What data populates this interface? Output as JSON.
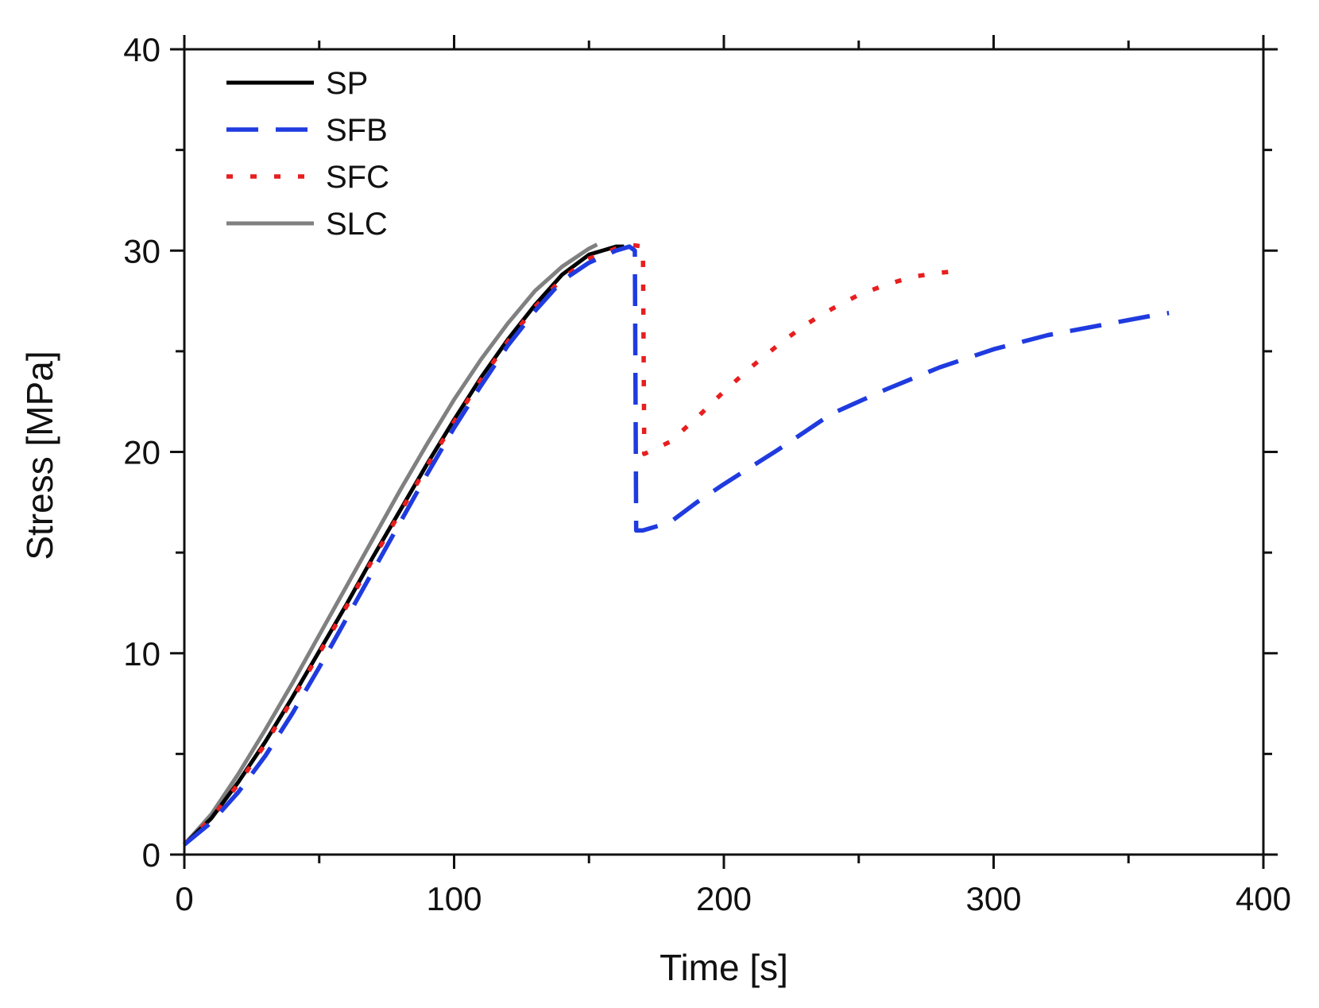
{
  "chart_data": {
    "type": "line",
    "title": "",
    "xlabel": "Time [s]",
    "ylabel": "Stress [MPa]",
    "xlim": [
      0,
      400
    ],
    "ylim": [
      0,
      40
    ],
    "xticks": [
      0,
      100,
      200,
      300,
      400
    ],
    "yticks": [
      0,
      10,
      20,
      30,
      40
    ],
    "x_minor_step": 50,
    "y_minor_step": 5,
    "grid": false,
    "legend_position": "top-left",
    "series": [
      {
        "name": "SP",
        "style": "solid",
        "color": "#000000",
        "points": [
          [
            0,
            0.5
          ],
          [
            10,
            1.8
          ],
          [
            20,
            3.6
          ],
          [
            30,
            5.6
          ],
          [
            40,
            7.8
          ],
          [
            50,
            10.1
          ],
          [
            60,
            12.4
          ],
          [
            70,
            14.8
          ],
          [
            80,
            17.1
          ],
          [
            90,
            19.4
          ],
          [
            100,
            21.6
          ],
          [
            110,
            23.7
          ],
          [
            120,
            25.6
          ],
          [
            130,
            27.3
          ],
          [
            140,
            28.8
          ],
          [
            150,
            29.8
          ],
          [
            160,
            30.2
          ],
          [
            163,
            30.2
          ]
        ]
      },
      {
        "name": "SFB",
        "style": "dashed",
        "color": "#1f3be0",
        "points": [
          [
            0,
            0.5
          ],
          [
            10,
            1.6
          ],
          [
            20,
            3.1
          ],
          [
            30,
            4.9
          ],
          [
            40,
            7.0
          ],
          [
            50,
            9.3
          ],
          [
            60,
            11.7
          ],
          [
            70,
            14.1
          ],
          [
            80,
            16.5
          ],
          [
            90,
            18.9
          ],
          [
            100,
            21.2
          ],
          [
            110,
            23.3
          ],
          [
            120,
            25.3
          ],
          [
            130,
            27.0
          ],
          [
            140,
            28.5
          ],
          [
            150,
            29.4
          ],
          [
            160,
            30.0
          ],
          [
            165,
            30.2
          ],
          [
            167,
            30.0
          ],
          [
            167.5,
            16.1
          ],
          [
            170,
            16.1
          ],
          [
            180,
            16.5
          ],
          [
            190,
            17.5
          ],
          [
            200,
            18.4
          ],
          [
            220,
            20.1
          ],
          [
            240,
            21.9
          ],
          [
            260,
            23.1
          ],
          [
            280,
            24.2
          ],
          [
            300,
            25.1
          ],
          [
            320,
            25.8
          ],
          [
            340,
            26.3
          ],
          [
            360,
            26.8
          ],
          [
            365,
            26.9
          ]
        ]
      },
      {
        "name": "SFC",
        "style": "dotted",
        "color": "#e81e1e",
        "points": [
          [
            0,
            0.5
          ],
          [
            10,
            1.8
          ],
          [
            20,
            3.5
          ],
          [
            30,
            5.5
          ],
          [
            40,
            7.7
          ],
          [
            50,
            10.0
          ],
          [
            60,
            12.3
          ],
          [
            70,
            14.7
          ],
          [
            80,
            17.0
          ],
          [
            90,
            19.3
          ],
          [
            100,
            21.5
          ],
          [
            110,
            23.6
          ],
          [
            120,
            25.5
          ],
          [
            130,
            27.2
          ],
          [
            140,
            28.6
          ],
          [
            150,
            29.6
          ],
          [
            160,
            30.1
          ],
          [
            165,
            30.3
          ],
          [
            170,
            30.2
          ],
          [
            170.5,
            19.9
          ],
          [
            180,
            20.5
          ],
          [
            190,
            21.7
          ],
          [
            200,
            23.0
          ],
          [
            210,
            24.2
          ],
          [
            220,
            25.3
          ],
          [
            230,
            26.3
          ],
          [
            240,
            27.1
          ],
          [
            250,
            27.8
          ],
          [
            260,
            28.3
          ],
          [
            270,
            28.7
          ],
          [
            280,
            28.9
          ],
          [
            288,
            29.0
          ]
        ]
      },
      {
        "name": "SLC",
        "style": "solid",
        "color": "#808080",
        "points": [
          [
            0,
            0.5
          ],
          [
            10,
            2.0
          ],
          [
            20,
            4.0
          ],
          [
            30,
            6.2
          ],
          [
            40,
            8.5
          ],
          [
            50,
            10.9
          ],
          [
            60,
            13.3
          ],
          [
            70,
            15.7
          ],
          [
            80,
            18.1
          ],
          [
            90,
            20.4
          ],
          [
            100,
            22.6
          ],
          [
            110,
            24.6
          ],
          [
            120,
            26.4
          ],
          [
            130,
            28.0
          ],
          [
            140,
            29.2
          ],
          [
            150,
            30.1
          ],
          [
            153,
            30.3
          ]
        ]
      }
    ]
  }
}
